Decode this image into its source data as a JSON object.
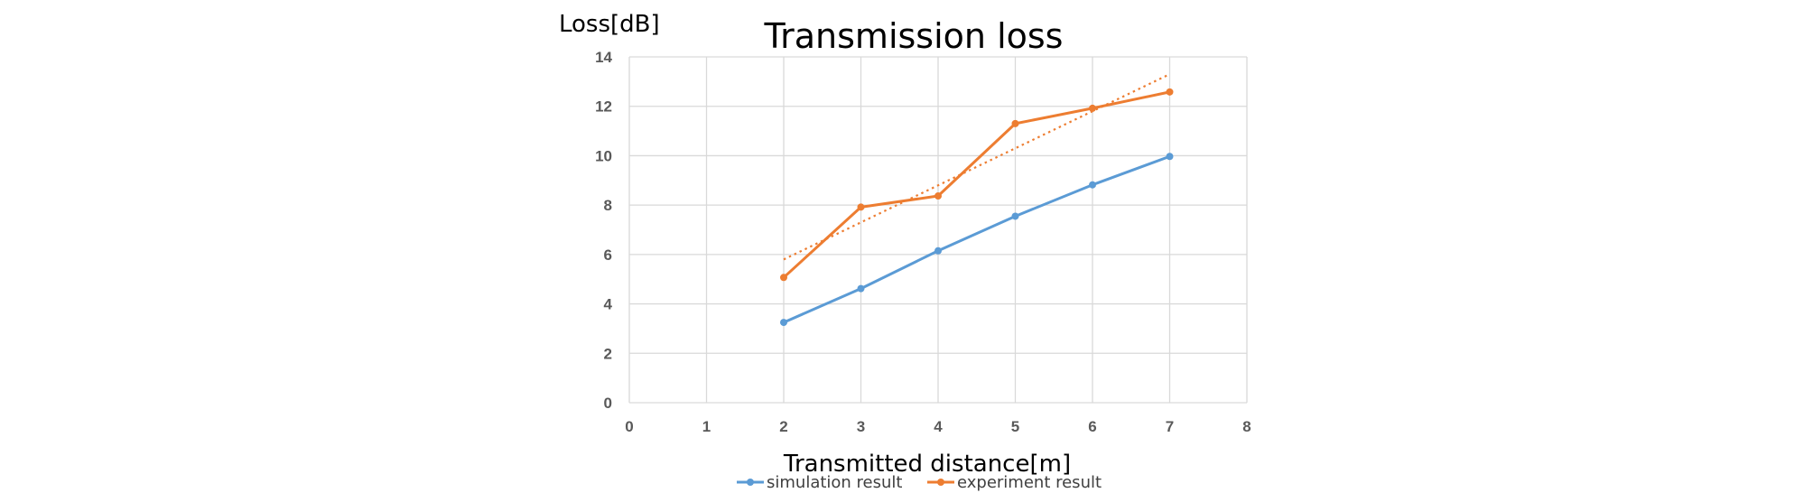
{
  "chart_data": {
    "type": "line",
    "title": "Transmission loss",
    "xlabel": "Transmitted distance[m]",
    "ylabel": "Loss[dB]",
    "xlim": [
      0,
      8
    ],
    "ylim": [
      0,
      14
    ],
    "x_ticks": [
      "0",
      "1",
      "2",
      "3",
      "4",
      "5",
      "6",
      "7",
      "8"
    ],
    "y_ticks": [
      "0",
      "2",
      "4",
      "6",
      "8",
      "10",
      "12",
      "14"
    ],
    "grid": true,
    "legend_position": "bottom",
    "series": [
      {
        "name": "simulation result",
        "color": "#5b9bd5",
        "x": [
          2,
          3,
          4,
          5,
          6,
          7
        ],
        "values": [
          3.25,
          4.62,
          6.15,
          7.55,
          8.82,
          9.97
        ]
      },
      {
        "name": "experiment result",
        "color": "#ed7d31",
        "x": [
          2,
          3,
          4,
          5,
          6,
          7
        ],
        "values": [
          5.07,
          7.92,
          8.37,
          11.3,
          11.92,
          12.58
        ],
        "trendline": {
          "style": "dotted",
          "from": [
            2,
            5.8
          ],
          "to": [
            7,
            13.3
          ]
        }
      }
    ]
  }
}
